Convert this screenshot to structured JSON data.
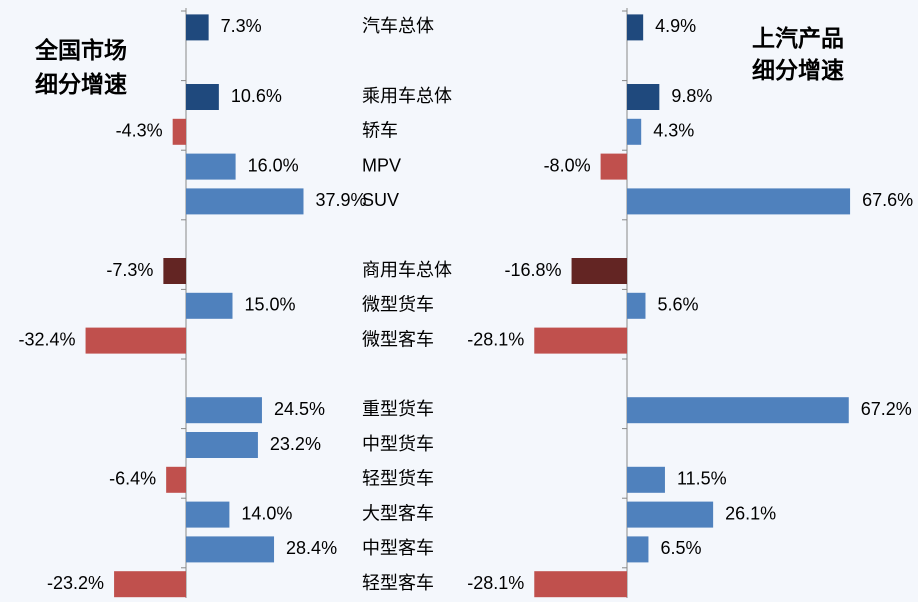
{
  "chart_data": {
    "type": "bar",
    "orientation": "horizontal",
    "categories": [
      "汽车总体",
      null,
      "乘用车总体",
      "轿车",
      "MPV",
      "SUV",
      null,
      "商用车总体",
      "微型货车",
      "微型客车",
      null,
      "重型货车",
      "中型货车",
      "轻型货车",
      "大型客车",
      "中型客车",
      "轻型客车"
    ],
    "series": [
      {
        "name": [
          "全国市场",
          "细分增速"
        ],
        "xlim": [
          -60,
          40
        ],
        "values": [
          7.3,
          null,
          10.6,
          -4.3,
          16.0,
          37.9,
          null,
          -7.3,
          15.0,
          -32.4,
          null,
          24.5,
          23.2,
          -6.4,
          14.0,
          28.4,
          -23.2
        ],
        "value_labels": [
          "7.3%",
          null,
          "10.6%",
          "-4.3%",
          "16.0%",
          "37.9%",
          null,
          "-7.3%",
          "15.0%",
          "-32.4%",
          null,
          "24.5%",
          "23.2%",
          "-6.4%",
          "14.0%",
          "28.4%",
          "-23.2%"
        ],
        "colors": [
          "#1f497d",
          null,
          "#1f497d",
          "#c0504d",
          "#4f81bd",
          "#4f81bd",
          null,
          "#632523",
          "#4f81bd",
          "#c0504d",
          null,
          "#4f81bd",
          "#4f81bd",
          "#c0504d",
          "#4f81bd",
          "#4f81bd",
          "#c0504d"
        ]
      },
      {
        "name": [
          "上汽产品",
          "细分增速"
        ],
        "xlim": [
          -60,
          70
        ],
        "values": [
          4.9,
          null,
          9.8,
          4.3,
          -8.0,
          67.6,
          null,
          -16.8,
          5.6,
          -28.1,
          null,
          67.2,
          null,
          11.5,
          26.1,
          6.5,
          -28.1
        ],
        "value_labels": [
          "4.9%",
          null,
          "9.8%",
          "4.3%",
          "-8.0%",
          "67.6%",
          null,
          "-16.8%",
          "5.6%",
          "-28.1%",
          null,
          "67.2%",
          null,
          "11.5%",
          "26.1%",
          "6.5%",
          "-28.1%"
        ],
        "colors": [
          "#1f497d",
          null,
          "#1f497d",
          "#4f81bd",
          "#c0504d",
          "#4f81bd",
          null,
          "#632523",
          "#4f81bd",
          "#c0504d",
          null,
          "#4f81bd",
          null,
          "#4f81bd",
          "#4f81bd",
          "#4f81bd",
          "#c0504d"
        ]
      }
    ]
  }
}
